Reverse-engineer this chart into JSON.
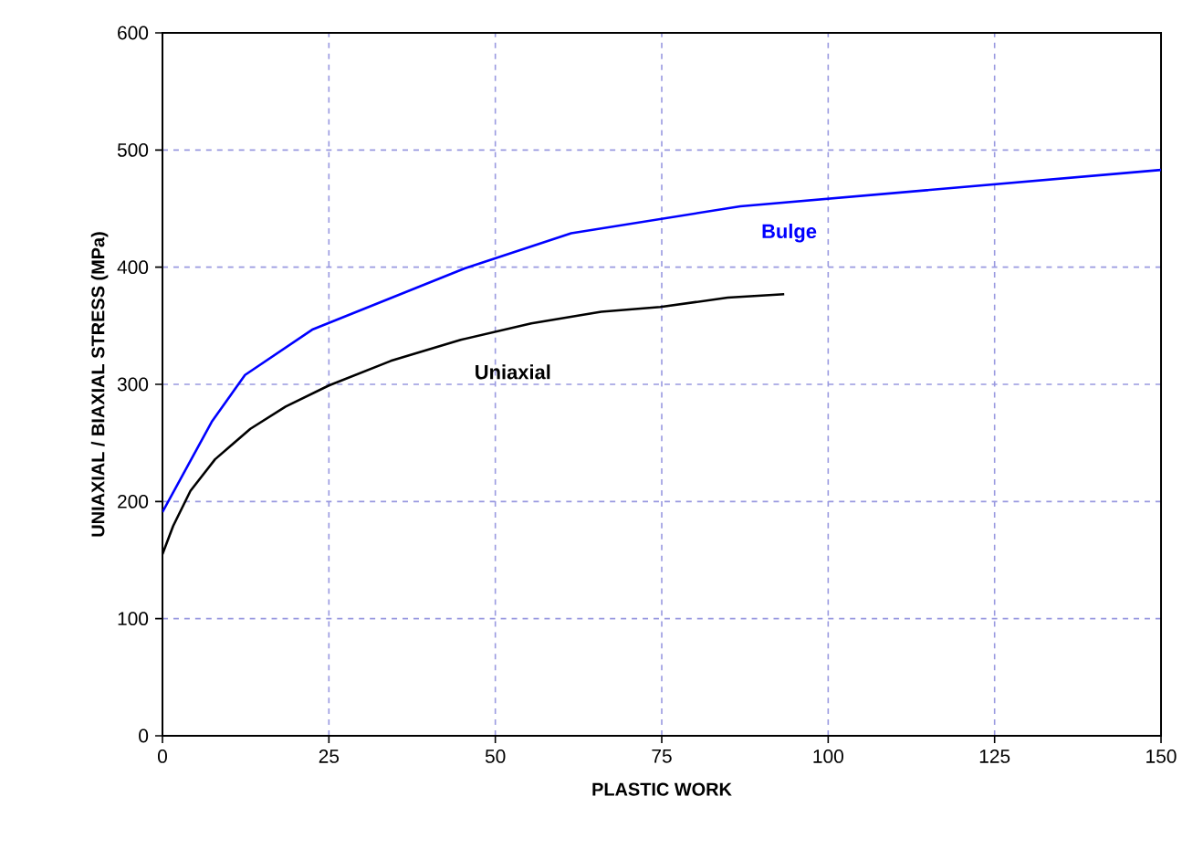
{
  "chart_data": {
    "type": "line",
    "xlabel": "PLASTIC WORK",
    "ylabel": "UNIAXIAL / BIAXIAL STRESS (MPa)",
    "xlim": [
      0,
      150
    ],
    "ylim": [
      0,
      600
    ],
    "xticks": [
      0,
      25,
      50,
      75,
      100,
      125,
      150
    ],
    "yticks": [
      0,
      100,
      200,
      300,
      400,
      500,
      600
    ],
    "grid": true,
    "line_style": "solid",
    "marker": "none",
    "series": [
      {
        "name": "Bulge",
        "color": "#0000ff",
        "x": [
          0,
          7.4,
          12.4,
          22.6,
          45.4,
          61.4,
          86.8,
          150
        ],
        "values": [
          191,
          268,
          308,
          347,
          399,
          429,
          452,
          483
        ]
      },
      {
        "name": "Uniaxial",
        "color": "#000000",
        "x": [
          0,
          1.6,
          4.2,
          7.9,
          13.2,
          18.5,
          25,
          34.3,
          44.8,
          55.4,
          65.9,
          74.8,
          84.9,
          93.4
        ],
        "values": [
          155,
          179,
          209,
          236,
          262,
          281,
          299,
          320,
          338,
          352,
          362,
          366,
          374,
          377
        ]
      }
    ]
  }
}
